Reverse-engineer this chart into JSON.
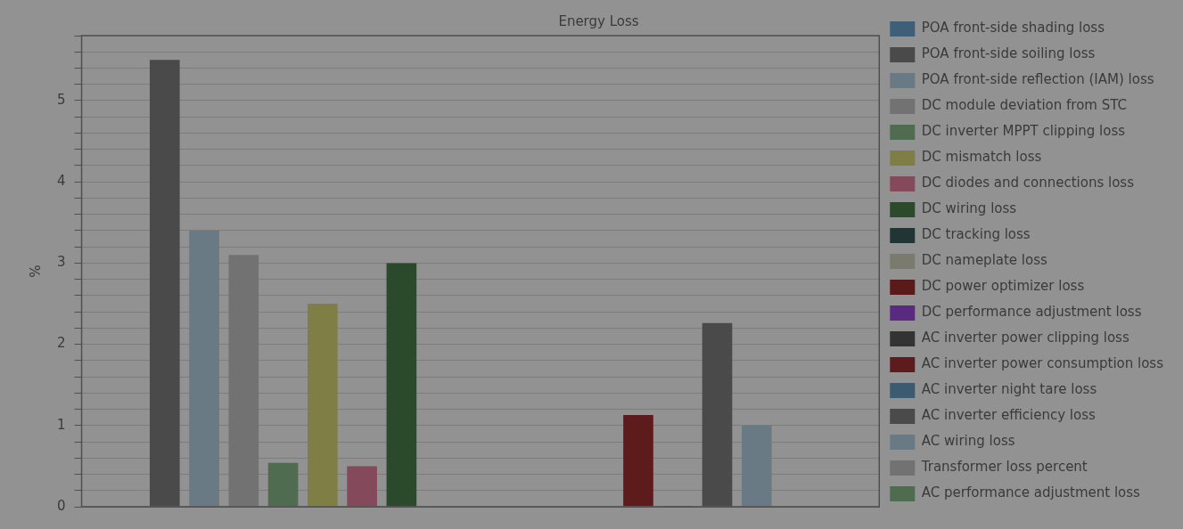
{
  "chart_data": {
    "type": "bar",
    "title": "Energy Loss",
    "ylabel": "%",
    "categories": [
      null
    ],
    "series": [
      {
        "name": "POA front-side shading loss",
        "color": "#3f5f78",
        "values": [
          0
        ]
      },
      {
        "name": "POA front-side soiling loss",
        "color": "#4a4a4a",
        "values": [
          5.5
        ]
      },
      {
        "name": "POA front-side reflection (IAM) loss",
        "color": "#6a7a85",
        "values": [
          3.4
        ]
      },
      {
        "name": "DC module deviation from STC",
        "color": "#727272",
        "values": [
          3.1
        ]
      },
      {
        "name": "DC inverter MPPT clipping loss",
        "color": "#4f6b50",
        "values": [
          0.54
        ]
      },
      {
        "name": "DC mismatch loss",
        "color": "#7f7f45",
        "values": [
          2.5
        ]
      },
      {
        "name": "DC diodes and connections loss",
        "color": "#844a5c",
        "values": [
          0.5
        ]
      },
      {
        "name": "DC wiring loss",
        "color": "#2b4a2b",
        "values": [
          3.0
        ]
      },
      {
        "name": "DC tracking loss",
        "color": "#223535",
        "values": [
          0
        ]
      },
      {
        "name": "DC nameplate loss",
        "color": "#7b7b6d",
        "values": [
          0
        ]
      },
      {
        "name": "DC power optimizer loss",
        "color": "#5a1a1a",
        "values": [
          0
        ]
      },
      {
        "name": "DC performance adjustment loss",
        "color": "#5a2a80",
        "values": [
          0
        ]
      },
      {
        "name": "AC inverter power clipping loss",
        "color": "#333333",
        "values": [
          0
        ]
      },
      {
        "name": "AC inverter power consumption loss",
        "color": "#5e1b1b",
        "values": [
          1.13
        ]
      },
      {
        "name": "AC inverter night tare loss",
        "color": "#3c5a70",
        "values": [
          0.01
        ]
      },
      {
        "name": "AC inverter efficiency loss",
        "color": "#4a4a4a",
        "values": [
          2.26
        ]
      },
      {
        "name": "AC wiring loss",
        "color": "#6a7a85",
        "values": [
          1.0
        ]
      },
      {
        "name": "Transformer loss percent",
        "color": "#727272",
        "values": [
          0
        ]
      },
      {
        "name": "AC performance adjustment loss",
        "color": "#4f6b50",
        "values": [
          0
        ]
      }
    ],
    "ylim": [
      0,
      5.8
    ],
    "yticks": [
      0,
      {
        "value": 0.2,
        "label": null
      },
      {
        "value": 0.4,
        "label": null
      },
      {
        "value": 0.6,
        "label": null
      },
      {
        "value": 0.8,
        "label": null
      },
      1,
      {
        "value": 1.2,
        "label": null
      },
      {
        "value": 1.4,
        "label": null
      },
      {
        "value": 1.6,
        "label": null
      },
      {
        "value": 1.8,
        "label": null
      },
      2,
      {
        "value": 2.2,
        "label": null
      },
      {
        "value": 2.4,
        "label": null
      },
      {
        "value": 2.6,
        "label": null
      },
      {
        "value": 2.8,
        "label": null
      },
      3,
      {
        "value": 3.2,
        "label": null
      },
      {
        "value": 3.4,
        "label": null
      },
      {
        "value": 3.6,
        "label": null
      },
      {
        "value": 3.8,
        "label": null
      },
      4,
      {
        "value": 4.2,
        "label": null
      },
      {
        "value": 4.4,
        "label": null
      },
      {
        "value": 4.6,
        "label": null
      },
      {
        "value": 4.8,
        "label": null
      },
      5,
      {
        "value": 5.2,
        "label": null
      },
      {
        "value": 5.4,
        "label": null
      },
      {
        "value": 5.6,
        "label": null
      },
      {
        "value": 5.8,
        "label": null
      }
    ],
    "grid": "y",
    "legend": "right"
  }
}
